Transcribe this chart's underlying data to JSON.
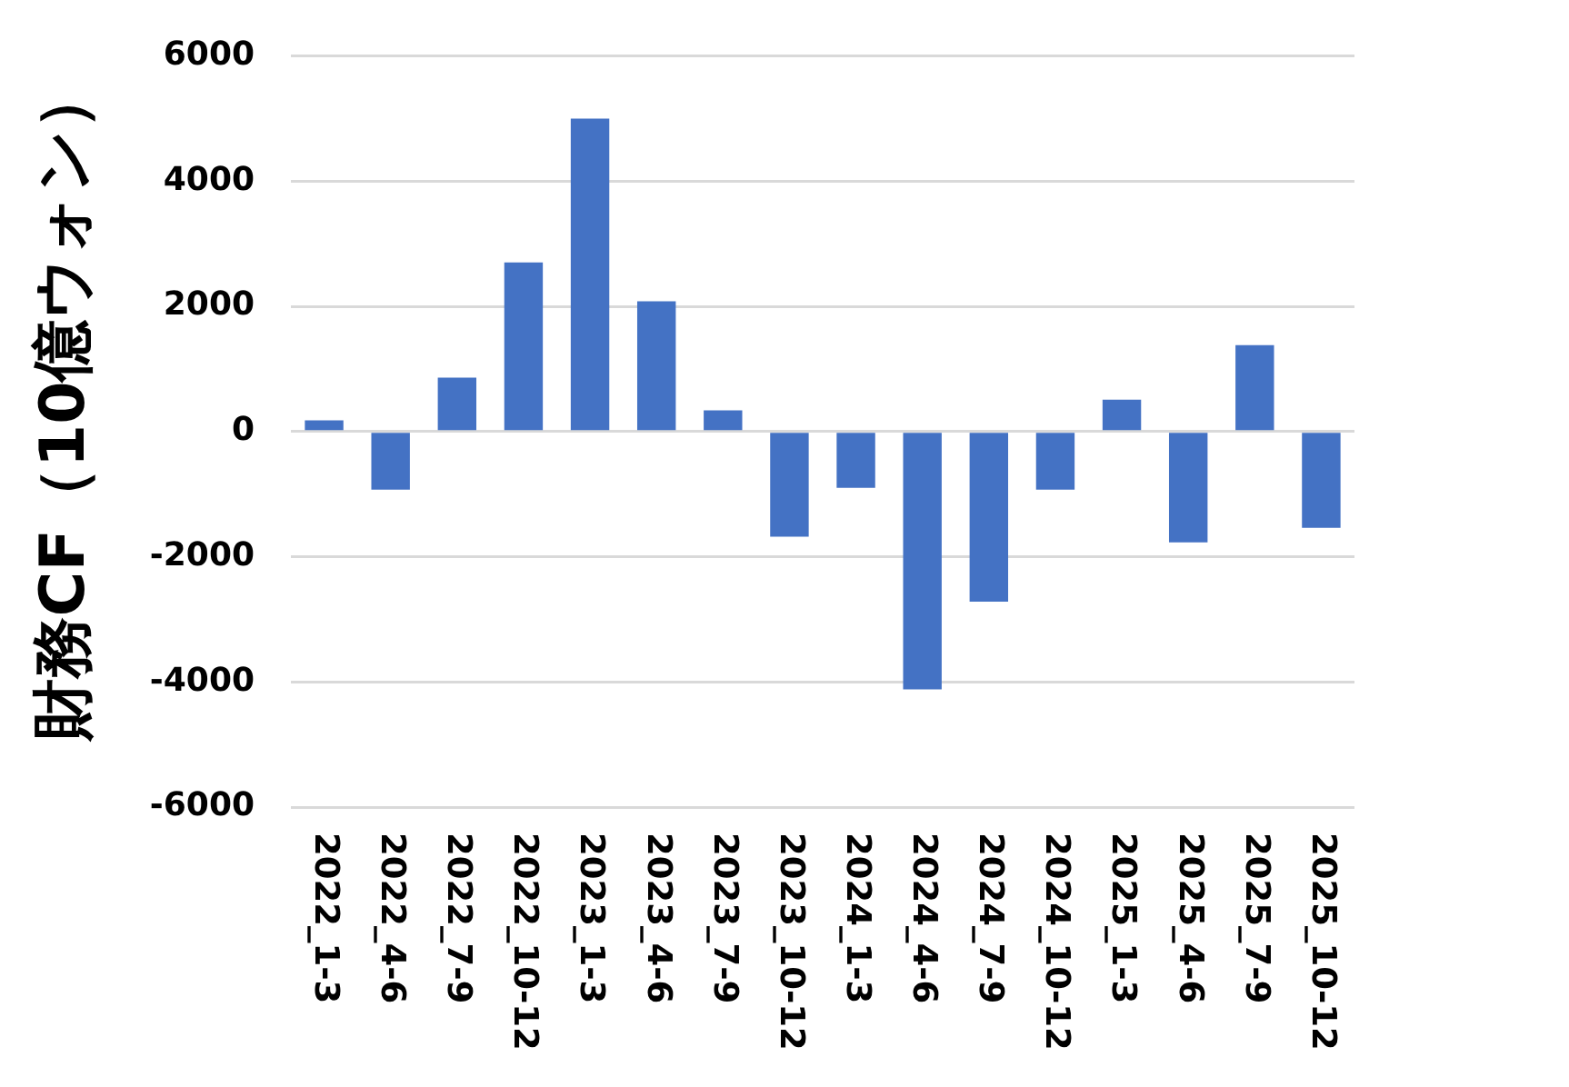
{
  "chart_data": {
    "type": "bar",
    "ylabel": "財務CF（10億ウォン）",
    "categories": [
      "2022_1-3",
      "2022_4-6",
      "2022_7-9",
      "2022_10-12",
      "2023_1-3",
      "2023_4-6",
      "2023_7-9",
      "2023_10-12",
      "2024_1-3",
      "2024_4-6",
      "2024_7-9",
      "2024_10-12",
      "2025_1-3",
      "2025_4-6",
      "2025_7-9",
      "2025_10-12"
    ],
    "values": [
      180,
      -930,
      860,
      2700,
      5000,
      2080,
      340,
      -1680,
      -900,
      -4120,
      -2720,
      -930,
      510,
      -1770,
      1380,
      -1540
    ],
    "color": "#4472c4",
    "ylim": [
      -6000,
      6000
    ],
    "yticks": [
      -6000,
      -4000,
      -2000,
      0,
      2000,
      4000,
      6000
    ],
    "grid": "y",
    "legend": false
  }
}
